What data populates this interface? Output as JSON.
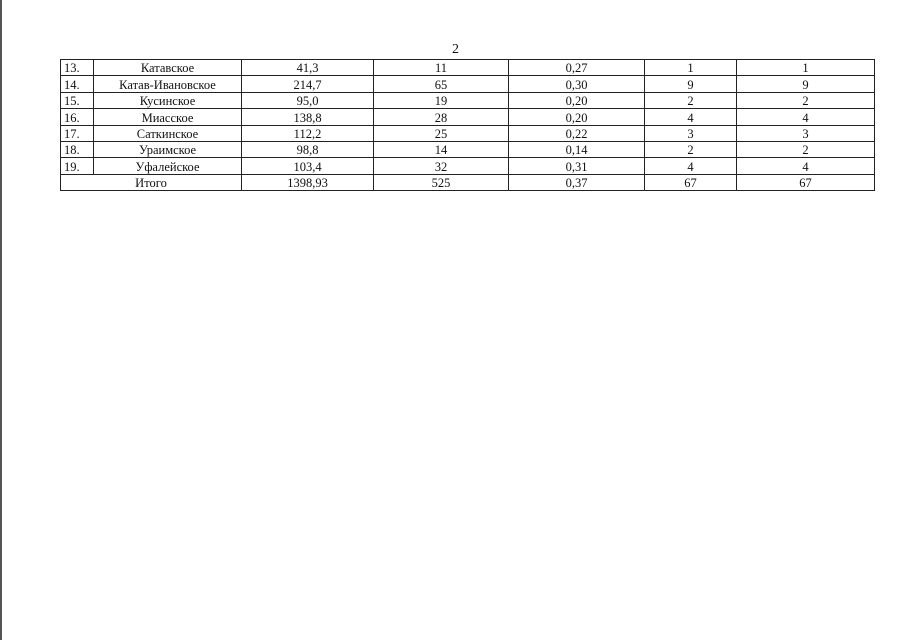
{
  "page_number": "2",
  "rows": [
    {
      "num": "13.",
      "name": "Катавское",
      "c2": "41,3",
      "c3": "11",
      "c4": "0,27",
      "c5": "1",
      "c6": "1"
    },
    {
      "num": "14.",
      "name": "Катав-Ивановское",
      "c2": "214,7",
      "c3": "65",
      "c4": "0,30",
      "c5": "9",
      "c6": "9"
    },
    {
      "num": "15.",
      "name": "Кусинское",
      "c2": "95,0",
      "c3": "19",
      "c4": "0,20",
      "c5": "2",
      "c6": "2"
    },
    {
      "num": "16.",
      "name": "Миасское",
      "c2": "138,8",
      "c3": "28",
      "c4": "0,20",
      "c5": "4",
      "c6": "4"
    },
    {
      "num": "17.",
      "name": "Саткинское",
      "c2": "112,2",
      "c3": "25",
      "c4": "0,22",
      "c5": "3",
      "c6": "3"
    },
    {
      "num": "18.",
      "name": "Ураимское",
      "c2": "98,8",
      "c3": "14",
      "c4": "0,14",
      "c5": "2",
      "c6": "2"
    },
    {
      "num": "19.",
      "name": "Уфалейское",
      "c2": "103,4",
      "c3": "32",
      "c4": "0,31",
      "c5": "4",
      "c6": "4"
    }
  ],
  "total": {
    "label": "Итого",
    "c2": "1398,93",
    "c3": "525",
    "c4": "0,37",
    "c5": "67",
    "c6": "67"
  }
}
